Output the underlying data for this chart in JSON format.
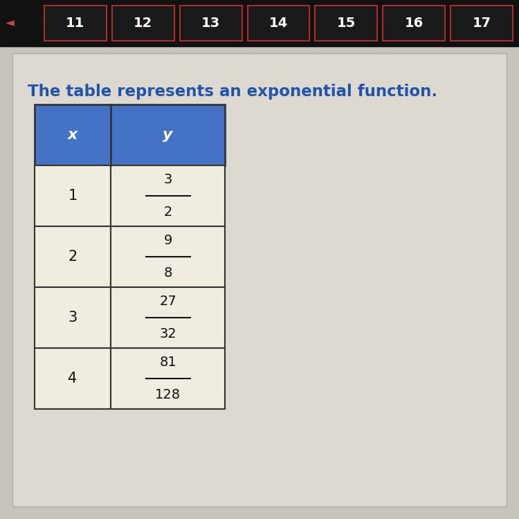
{
  "title": "The table represents an exponential function.",
  "title_color": "#2255aa",
  "title_fontsize": 16.5,
  "nav_labels": [
    "11",
    "12",
    "13",
    "14",
    "15",
    "16",
    "17"
  ],
  "nav_bg": "#111111",
  "nav_btn_bg": "#1a1a1a",
  "nav_btn_border": "#cc3333",
  "nav_text_color": "#ffffff",
  "header_row": [
    "x",
    "y"
  ],
  "x_values": [
    "1",
    "2",
    "3",
    "4"
  ],
  "y_numerators": [
    "3",
    "9",
    "27",
    "81"
  ],
  "y_denominators": [
    "2",
    "8",
    "32",
    "128"
  ],
  "header_bg": "#4472c4",
  "header_text_color": "#ffffff",
  "table_bg": "#f0ece0",
  "grid_color": "#333333",
  "cell_text_color": "#111111",
  "page_bg": "#c8c4bc",
  "content_bg": "#ddd9d0"
}
